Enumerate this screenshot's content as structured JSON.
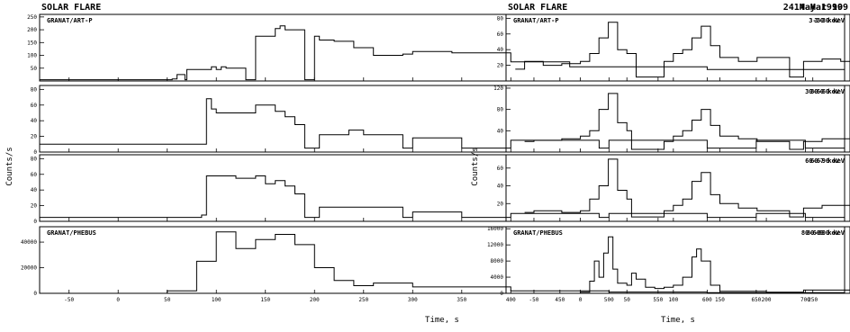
{
  "figures": [
    {
      "title": "SOLAR FLARE",
      "date": "24 May 1990",
      "ylabel": "Counts/s",
      "xlabel": "Time, s",
      "x_ticks": [
        -50,
        0,
        50,
        100,
        150,
        200,
        250,
        300,
        350,
        400,
        450,
        500,
        550,
        600,
        650,
        700
      ],
      "panels": [
        {
          "instrument": "GRANAT/ART-P",
          "band": "3-30 keV",
          "y_ticks": [
            50,
            100,
            150,
            200,
            250
          ]
        },
        {
          "instrument": "",
          "band": "30-60 keV",
          "y_ticks": [
            0,
            20,
            40,
            60,
            80
          ]
        },
        {
          "instrument": "",
          "band": "60-67 keV",
          "y_ticks": [
            0,
            20,
            40,
            60,
            80
          ]
        },
        {
          "instrument": "GRANAT/PHEBUS",
          "band": "80-600 keV",
          "y_ticks": [
            0,
            20000,
            40000
          ]
        }
      ]
    },
    {
      "title": "SOLAR FLARE",
      "date": "14 Mar 199",
      "ylabel": "Counts/s",
      "xlabel": "Time, s",
      "x_ticks": [
        -50,
        0,
        50,
        100,
        150,
        200,
        250
      ],
      "panels": [
        {
          "instrument": "GRANAT/ART-P",
          "band": "3-30 keV",
          "y_ticks": [
            20,
            40,
            60,
            80
          ]
        },
        {
          "instrument": "",
          "band": "30-60 keV",
          "y_ticks": [
            40,
            80,
            120
          ]
        },
        {
          "instrument": "",
          "band": "60-96 keV",
          "y_ticks": [
            20,
            40,
            60
          ]
        },
        {
          "instrument": "GRANAT/PHEBUS",
          "band": "80-600 keV",
          "y_ticks": [
            0,
            4000,
            8000,
            12000,
            16000
          ]
        }
      ]
    }
  ],
  "chart_data": [
    {
      "type": "line",
      "title": "SOLAR FLARE",
      "subtitle": "24 May 1990",
      "xlabel": "Time, s",
      "ylabel": "Counts/s",
      "xlim": [
        -80,
        740
      ],
      "panels": [
        {
          "name": "3-30 keV",
          "ylim": [
            0,
            260
          ],
          "x": [
            -80,
            55,
            60,
            68,
            70,
            95,
            100,
            105,
            110,
            120,
            130,
            140,
            160,
            165,
            170,
            190,
            200,
            205,
            220,
            240,
            260,
            290,
            300,
            340,
            400,
            460,
            500,
            600,
            740
          ],
          "y": [
            5,
            8,
            25,
            5,
            45,
            55,
            45,
            55,
            50,
            50,
            5,
            175,
            205,
            215,
            200,
            5,
            175,
            160,
            155,
            130,
            100,
            105,
            115,
            110,
            75,
            55,
            55,
            45,
            35
          ]
        },
        {
          "name": "30-60 keV",
          "ylim": [
            0,
            85
          ],
          "x": [
            -80,
            85,
            90,
            95,
            100,
            120,
            140,
            160,
            170,
            180,
            190,
            200,
            205,
            235,
            250,
            290,
            300,
            340,
            350,
            400,
            450,
            490,
            500,
            550,
            600,
            650,
            690,
            700,
            740
          ],
          "y": [
            10,
            10,
            68,
            55,
            50,
            50,
            60,
            52,
            45,
            35,
            5,
            5,
            22,
            28,
            22,
            5,
            18,
            18,
            5,
            15,
            15,
            5,
            15,
            15,
            5,
            15,
            15,
            5,
            12
          ]
        },
        {
          "name": "60-67 keV",
          "ylim": [
            0,
            85
          ],
          "x": [
            -80,
            85,
            90,
            100,
            120,
            140,
            150,
            160,
            170,
            180,
            190,
            200,
            205,
            235,
            250,
            290,
            300,
            340,
            350,
            400,
            450,
            490,
            500,
            550,
            600,
            650,
            690,
            700,
            740
          ],
          "y": [
            5,
            8,
            58,
            58,
            55,
            58,
            48,
            52,
            45,
            35,
            5,
            5,
            18,
            18,
            18,
            5,
            12,
            12,
            5,
            10,
            10,
            5,
            10,
            10,
            5,
            10,
            10,
            5,
            10
          ]
        },
        {
          "name": "80-600 keV",
          "ylim": [
            0,
            52000
          ],
          "x": [
            -80,
            50,
            80,
            100,
            120,
            140,
            160,
            180,
            200,
            220,
            240,
            260,
            300,
            400,
            500,
            600,
            740
          ],
          "y": [
            0,
            2000,
            25000,
            48000,
            35000,
            42000,
            46000,
            38000,
            20000,
            10000,
            6000,
            8000,
            5000,
            2000,
            1000,
            500,
            0
          ]
        }
      ]
    },
    {
      "type": "line",
      "title": "SOLAR FLARE",
      "subtitle": "14 Mar 199",
      "xlabel": "Time, s",
      "ylabel": "Counts/s",
      "xlim": [
        -80,
        290
      ],
      "panels": [
        {
          "name": "3-30 keV",
          "ylim": [
            0,
            85
          ],
          "x": [
            -70,
            -60,
            -40,
            -20,
            0,
            10,
            20,
            30,
            40,
            50,
            60,
            85,
            90,
            100,
            110,
            120,
            130,
            140,
            150,
            170,
            190,
            225,
            240,
            260,
            280,
            290
          ],
          "y": [
            15,
            25,
            20,
            22,
            25,
            35,
            55,
            75,
            40,
            35,
            5,
            5,
            25,
            35,
            40,
            55,
            70,
            45,
            30,
            25,
            30,
            5,
            25,
            28,
            25,
            25
          ]
        },
        {
          "name": "30-60 keV",
          "ylim": [
            0,
            125
          ],
          "x": [
            -60,
            -50,
            -20,
            0,
            10,
            20,
            30,
            40,
            50,
            55,
            60,
            85,
            90,
            100,
            110,
            120,
            130,
            140,
            150,
            170,
            190,
            225,
            240,
            260,
            280,
            290
          ],
          "y": [
            20,
            22,
            25,
            30,
            40,
            80,
            110,
            55,
            40,
            5,
            5,
            5,
            20,
            30,
            40,
            60,
            80,
            50,
            30,
            25,
            20,
            5,
            20,
            25,
            25,
            22
          ]
        },
        {
          "name": "60-96 keV",
          "ylim": [
            0,
            75
          ],
          "x": [
            -60,
            -50,
            -20,
            0,
            10,
            20,
            30,
            40,
            50,
            55,
            60,
            85,
            90,
            100,
            110,
            120,
            130,
            140,
            150,
            170,
            190,
            225,
            240,
            260,
            280,
            290
          ],
          "y": [
            10,
            12,
            10,
            12,
            25,
            40,
            70,
            35,
            25,
            5,
            5,
            5,
            12,
            18,
            25,
            45,
            55,
            30,
            20,
            15,
            12,
            5,
            15,
            18,
            18,
            15
          ]
        },
        {
          "name": "80-600 keV",
          "ylim": [
            0,
            16500
          ],
          "x": [
            -60,
            -10,
            0,
            10,
            15,
            20,
            25,
            30,
            35,
            40,
            50,
            55,
            60,
            70,
            80,
            90,
            100,
            110,
            120,
            125,
            130,
            140,
            150,
            200,
            240,
            290
          ],
          "y": [
            0,
            0,
            300,
            3000,
            8000,
            4000,
            10000,
            14000,
            6000,
            2500,
            2000,
            5000,
            3500,
            1500,
            1200,
            1500,
            2000,
            4000,
            9000,
            11000,
            8000,
            2000,
            500,
            300,
            800,
            200
          ]
        }
      ]
    }
  ]
}
